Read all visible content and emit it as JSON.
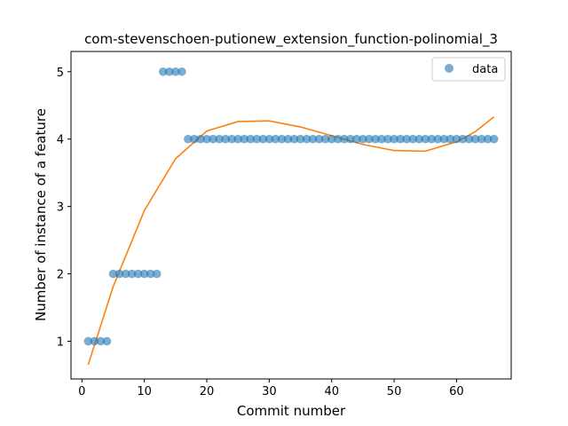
{
  "chart_data": {
    "type": "scatter",
    "title": "com-stevenschoen-putionew_extension_function-polinomial_3",
    "xlabel": "Commit number",
    "ylabel": "Number of instance of a feature",
    "xlim": [
      -1.75,
      68.75
    ],
    "ylim": [
      0.44,
      5.3
    ],
    "xticks": [
      0,
      10,
      20,
      30,
      40,
      50,
      60
    ],
    "yticks": [
      1,
      2,
      3,
      4,
      5
    ],
    "grid": false,
    "legend": {
      "placement": "top-right",
      "entries": [
        "data"
      ]
    },
    "colors": {
      "data": "#1f77b4",
      "fit": "#ff7f0e"
    },
    "series": [
      {
        "name": "data",
        "kind": "scatter",
        "x": [
          1,
          2,
          3,
          4,
          5,
          6,
          7,
          8,
          9,
          10,
          11,
          12,
          13,
          14,
          15,
          16,
          17,
          18,
          19,
          20,
          21,
          22,
          23,
          24,
          25,
          26,
          27,
          28,
          29,
          30,
          31,
          32,
          33,
          34,
          35,
          36,
          37,
          38,
          39,
          40,
          41,
          42,
          43,
          44,
          45,
          46,
          47,
          48,
          49,
          50,
          51,
          52,
          53,
          54,
          55,
          56,
          57,
          58,
          59,
          60,
          61,
          62,
          63,
          64,
          65,
          66
        ],
        "y": [
          1,
          1,
          1,
          1,
          2,
          2,
          2,
          2,
          2,
          2,
          2,
          2,
          5,
          5,
          5,
          5,
          4,
          4,
          4,
          4,
          4,
          4,
          4,
          4,
          4,
          4,
          4,
          4,
          4,
          4,
          4,
          4,
          4,
          4,
          4,
          4,
          4,
          4,
          4,
          4,
          4,
          4,
          4,
          4,
          4,
          4,
          4,
          4,
          4,
          4,
          4,
          4,
          4,
          4,
          4,
          4,
          4,
          4,
          4,
          4,
          4,
          4,
          4,
          4,
          4,
          4
        ]
      },
      {
        "kind": "line",
        "x": [
          1,
          5,
          10,
          15,
          20,
          25,
          30,
          35,
          40,
          45,
          50,
          55,
          60,
          63,
          66
        ],
        "y": [
          0.65,
          1.81,
          2.94,
          3.71,
          4.12,
          4.26,
          4.27,
          4.18,
          4.05,
          3.92,
          3.83,
          3.82,
          3.96,
          4.11,
          4.33
        ]
      }
    ]
  }
}
